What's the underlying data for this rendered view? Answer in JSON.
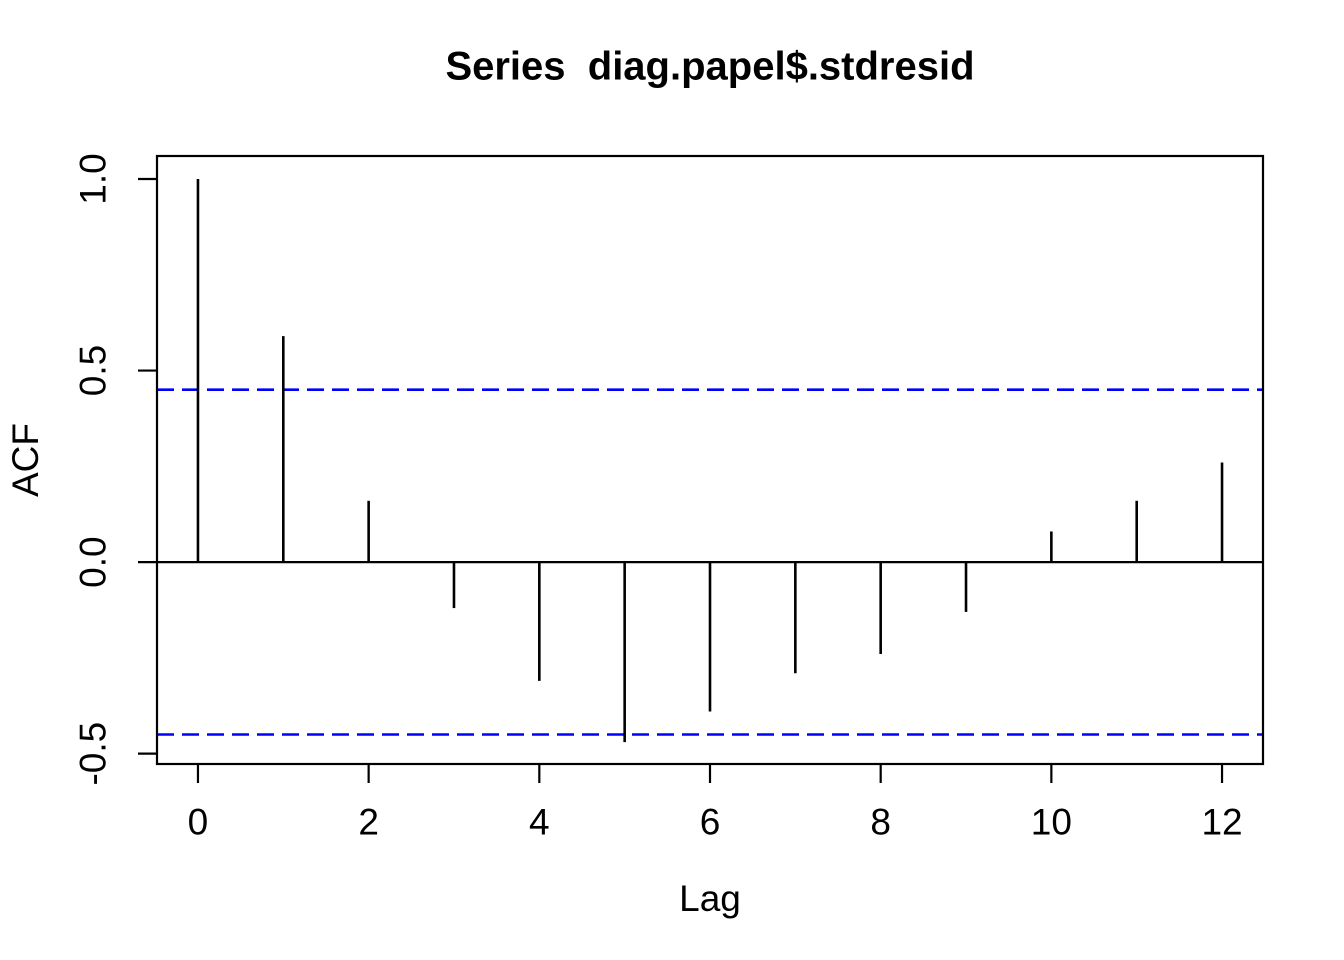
{
  "chart_data": {
    "type": "bar",
    "variant": "acf-spike-plot",
    "title": "Series  diag.papel$.stdresid",
    "xlabel": "Lag",
    "ylabel": "ACF",
    "x": [
      0,
      1,
      2,
      3,
      4,
      5,
      6,
      7,
      8,
      9,
      10,
      11,
      12
    ],
    "values": [
      1.0,
      0.59,
      0.16,
      -0.12,
      -0.31,
      -0.47,
      -0.39,
      -0.29,
      -0.24,
      -0.13,
      0.08,
      0.16,
      0.26
    ],
    "confidence_bound": 0.45,
    "confidence_line_style": "dashed",
    "x_tick_values": [
      0,
      2,
      4,
      6,
      8,
      10,
      12
    ],
    "x_tick_labels": [
      "0",
      "2",
      "4",
      "6",
      "8",
      "10",
      "12"
    ],
    "y_tick_values": [
      -0.5,
      0.0,
      0.5,
      1.0
    ],
    "y_tick_labels": [
      "-0.5",
      "0.0",
      "0.5",
      "1.0"
    ],
    "xlim": [
      -0.48,
      12.48
    ],
    "ylim": [
      -0.527,
      1.06
    ],
    "grid": false,
    "legend": "none",
    "colors": {
      "spike": "#000000",
      "axis": "#000000",
      "tick_label": "#000000",
      "ci_line": "#0000ff",
      "background": "#ffffff"
    }
  }
}
